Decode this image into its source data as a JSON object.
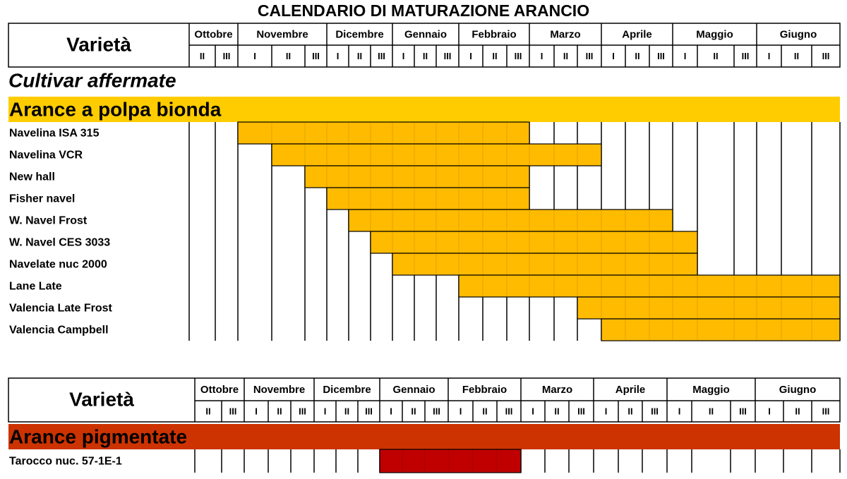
{
  "title": "CALENDARIO DI MATURAZIONE ARANCIO",
  "sections": [
    {
      "header": {
        "label": "Varietà",
        "months": [
          {
            "name": "Ottobre",
            "decades": [
              "II",
              "III"
            ]
          },
          {
            "name": "Novembre",
            "decades": [
              "I",
              "II",
              "III"
            ]
          },
          {
            "name": "Dicembre",
            "decades": [
              "I",
              "II",
              "III"
            ]
          },
          {
            "name": "Gennaio",
            "decades": [
              "I",
              "II",
              "III"
            ]
          },
          {
            "name": "Febbraio",
            "decades": [
              "I",
              "II",
              "III"
            ]
          },
          {
            "name": "Marzo",
            "decades": [
              "I",
              "II",
              "III"
            ]
          },
          {
            "name": "Aprile",
            "decades": [
              "I",
              "II",
              "III"
            ]
          },
          {
            "name": "Maggio",
            "decades": [
              "I",
              "II",
              "III"
            ]
          },
          {
            "name": "Giugno",
            "decades": [
              "I",
              "II",
              "III"
            ]
          }
        ]
      },
      "subtitle": "Cultivar affermate",
      "group": "Arance a polpa bionda",
      "band_color": "#ffcc00",
      "bar_color": "#ffbb00",
      "rows": [
        {
          "name": "Navelina ISA 315",
          "start": 2,
          "end": 14
        },
        {
          "name": "Navelina VCR",
          "start": 3,
          "end": 17
        },
        {
          "name": "New hall",
          "start": 4,
          "end": 14
        },
        {
          "name": "Fisher navel",
          "start": 5,
          "end": 14
        },
        {
          "name": "W. Navel Frost",
          "start": 6,
          "end": 20
        },
        {
          "name": "W. Navel CES 3033",
          "start": 7,
          "end": 21
        },
        {
          "name": "Navelate nuc 2000",
          "start": 8,
          "end": 21
        },
        {
          "name": "Lane Late",
          "start": 11,
          "end": 26
        },
        {
          "name": "Valencia Late Frost",
          "start": 16,
          "end": 26
        },
        {
          "name": "Valencia Campbell",
          "start": 17,
          "end": 26
        }
      ]
    },
    {
      "header": {
        "label": "Varietà",
        "months": [
          {
            "name": "Ottobre",
            "decades": [
              "II",
              "III"
            ]
          },
          {
            "name": "Novembre",
            "decades": [
              "I",
              "II",
              "III"
            ]
          },
          {
            "name": "Dicembre",
            "decades": [
              "I",
              "II",
              "III"
            ]
          },
          {
            "name": "Gennaio",
            "decades": [
              "I",
              "II",
              "III"
            ]
          },
          {
            "name": "Febbraio",
            "decades": [
              "I",
              "II",
              "III"
            ]
          },
          {
            "name": "Marzo",
            "decades": [
              "I",
              "II",
              "III"
            ]
          },
          {
            "name": "Aprile",
            "decades": [
              "I",
              "II",
              "III"
            ]
          },
          {
            "name": "Maggio",
            "decades": [
              "I",
              "II",
              "III"
            ]
          },
          {
            "name": "Giugno",
            "decades": [
              "I",
              "II",
              "III"
            ]
          }
        ]
      },
      "group": "Arance pigmentate",
      "band_color": "#cc3300",
      "bar_color": "#c00000",
      "rows": [
        {
          "name": "Tarocco nuc. 57-1E-1",
          "start": 8,
          "end": 14
        }
      ]
    }
  ]
}
